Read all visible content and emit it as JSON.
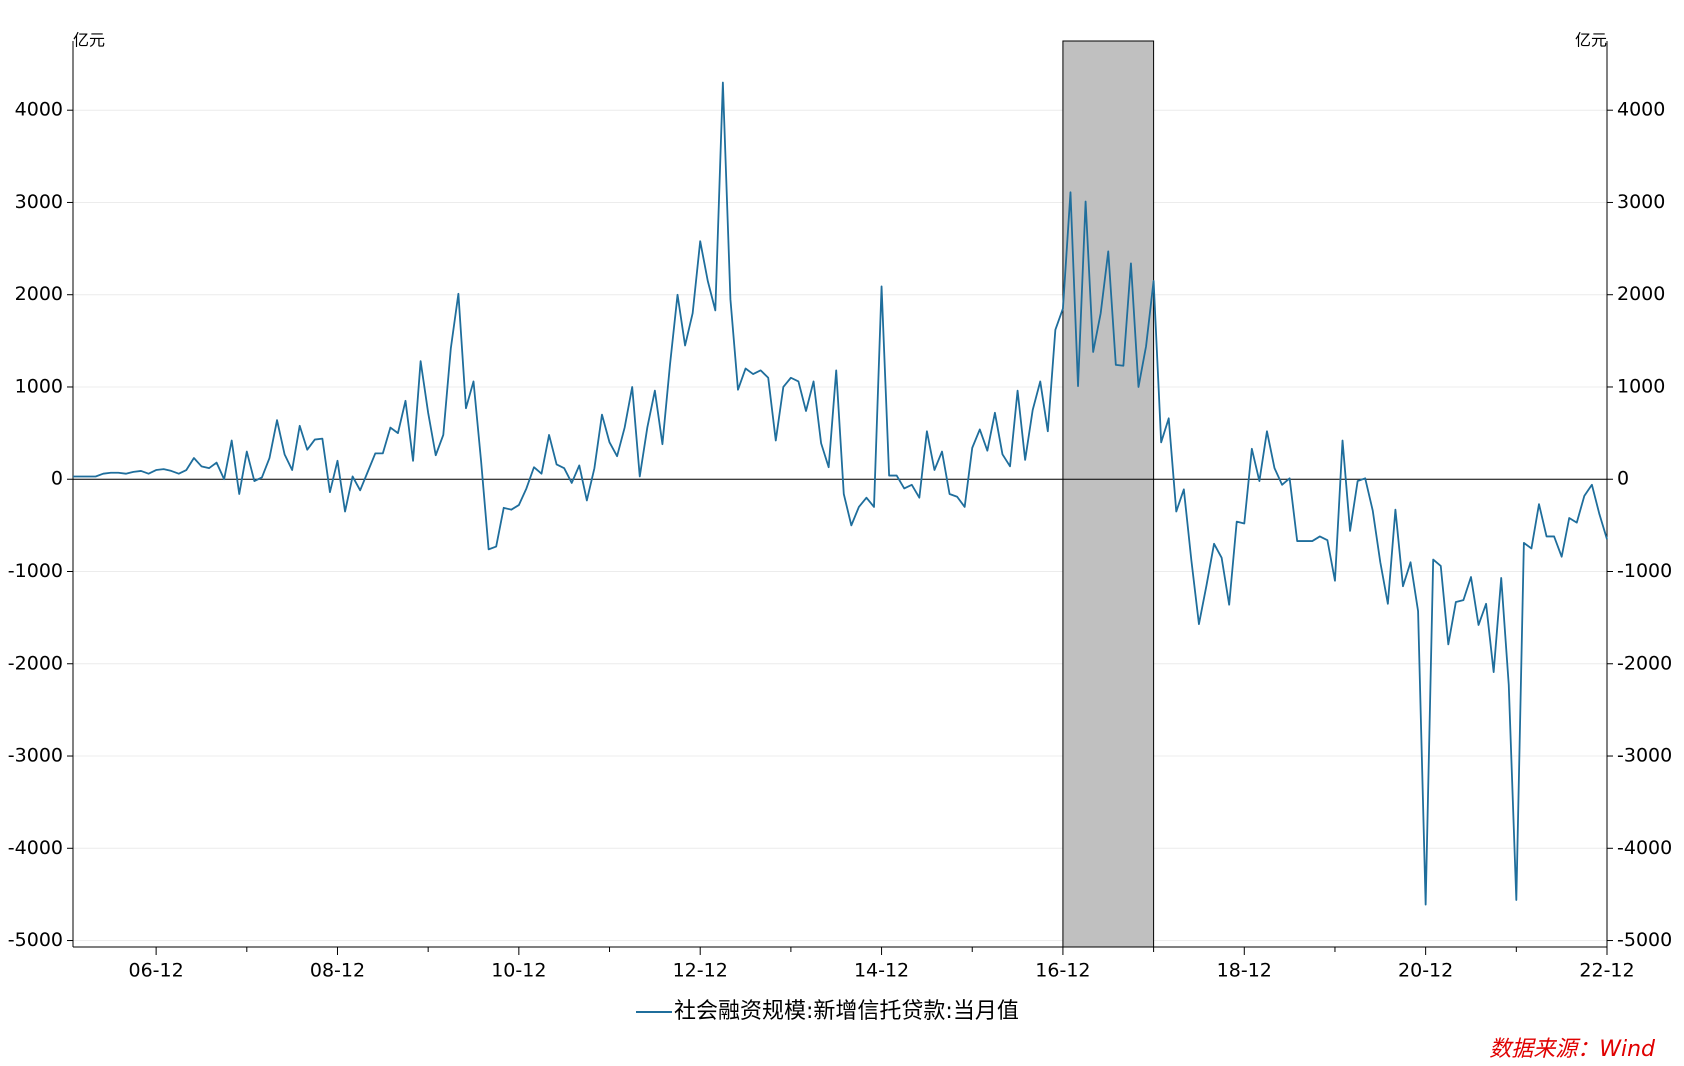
{
  "chart_data": {
    "type": "line",
    "y_unit": "亿元",
    "y2_unit": "亿元",
    "categories": [
      null,
      null,
      null,
      null,
      null,
      null,
      null,
      null,
      null,
      null,
      null,
      "06-12",
      null,
      null,
      null,
      null,
      null,
      null,
      null,
      null,
      null,
      null,
      null,
      null,
      null,
      null,
      null,
      null,
      null,
      null,
      null,
      null,
      null,
      null,
      null,
      "08-12",
      null,
      null,
      null,
      null,
      null,
      null,
      null,
      null,
      null,
      null,
      null,
      null,
      null,
      null,
      null,
      null,
      null,
      null,
      null,
      null,
      null,
      null,
      null,
      "10-12",
      null,
      null,
      null,
      null,
      null,
      null,
      null,
      null,
      null,
      null,
      null,
      null,
      null,
      null,
      null,
      null,
      null,
      null,
      null,
      null,
      null,
      null,
      null,
      "12-12",
      null,
      null,
      null,
      null,
      null,
      null,
      null,
      null,
      null,
      null,
      null,
      null,
      null,
      null,
      null,
      null,
      null,
      null,
      null,
      null,
      null,
      null,
      null,
      "14-12",
      null,
      null,
      null,
      null,
      null,
      null,
      null,
      null,
      null,
      null,
      null,
      null,
      null,
      null,
      null,
      null,
      null,
      null,
      null,
      null,
      null,
      null,
      null,
      "16-12",
      null,
      null,
      null,
      null,
      null,
      null,
      null,
      null,
      null,
      null,
      null,
      null,
      null,
      null,
      null,
      null,
      null,
      null,
      null,
      null,
      null,
      null,
      null,
      "18-12",
      null,
      null,
      null,
      null,
      null,
      null,
      null,
      null,
      null,
      null,
      null,
      null,
      null,
      null,
      null,
      null,
      null,
      null,
      null,
      null,
      null,
      null,
      null,
      "20-12",
      null,
      null,
      null,
      null,
      null,
      null,
      null,
      null,
      null,
      null,
      null,
      null,
      null,
      null,
      null,
      null,
      null,
      null,
      null,
      null,
      null,
      null,
      null,
      "22-12"
    ],
    "series": [
      {
        "name": "社会融资规模:新增信托贷款:当月值",
        "color": "#1f6e9c",
        "values": [
          30,
          30,
          30,
          30,
          60,
          70,
          70,
          60,
          80,
          90,
          60,
          100,
          110,
          90,
          60,
          100,
          230,
          140,
          120,
          180,
          0,
          420,
          -160,
          300,
          -20,
          20,
          230,
          640,
          270,
          100,
          580,
          320,
          430,
          440,
          -140,
          200,
          -350,
          30,
          -120,
          80,
          280,
          280,
          560,
          500,
          850,
          200,
          1280,
          720,
          260,
          480,
          1420,
          2010,
          770,
          1060,
          200,
          -760,
          -730,
          -310,
          -330,
          -280,
          -100,
          130,
          60,
          480,
          160,
          120,
          -40,
          150,
          -230,
          120,
          700,
          400,
          250,
          560,
          1000,
          30,
          560,
          960,
          380,
          1240,
          2000,
          1450,
          1800,
          2580,
          2150,
          1830,
          4300,
          1950,
          970,
          1200,
          1140,
          1180,
          1100,
          420,
          1000,
          1100,
          1060,
          740,
          1060,
          390,
          130,
          1180,
          -160,
          -500,
          -300,
          -200,
          -300,
          2090,
          40,
          40,
          -100,
          -60,
          -200,
          520,
          100,
          300,
          -160,
          -190,
          -300,
          340,
          540,
          310,
          720,
          270,
          140,
          960,
          210,
          750,
          1060,
          520,
          1620,
          1850,
          3110,
          1010,
          3010,
          1380,
          1800,
          2470,
          1240,
          1230,
          2340,
          1000,
          1440,
          2150,
          400,
          660,
          -350,
          -110,
          -880,
          -1570,
          -1150,
          -700,
          -850,
          -1360,
          -460,
          -480,
          330,
          -20,
          520,
          120,
          -60,
          10,
          -670,
          -670,
          -670,
          -620,
          -660,
          -1100,
          420,
          -560,
          -20,
          10,
          -340,
          -900,
          -1350,
          -330,
          -1160,
          -900,
          -1430,
          -4610,
          -870,
          -940,
          -1790,
          -1330,
          -1310,
          -1060,
          -1580,
          -1350,
          -2090,
          -1070,
          -2230,
          -4560,
          -690,
          -750,
          -270,
          -620,
          -620,
          -840,
          -420,
          -470,
          -180,
          -60,
          -380,
          -650
        ]
      }
    ],
    "ylim": [
      -5070,
      4750
    ],
    "yticks": [
      -5000,
      -4000,
      -3000,
      -2000,
      -1000,
      0,
      1000,
      2000,
      3000,
      4000
    ],
    "y2lim": [
      -5070,
      4750
    ],
    "y2ticks": [
      -5000,
      -4000,
      -3000,
      -2000,
      -1000,
      0,
      1000,
      2000,
      3000,
      4000
    ],
    "grid": true,
    "highlight_range": [
      131,
      143
    ],
    "highlight_color": "#c0c0c0",
    "legend": "bottom",
    "source": "数据来源：Wind"
  }
}
